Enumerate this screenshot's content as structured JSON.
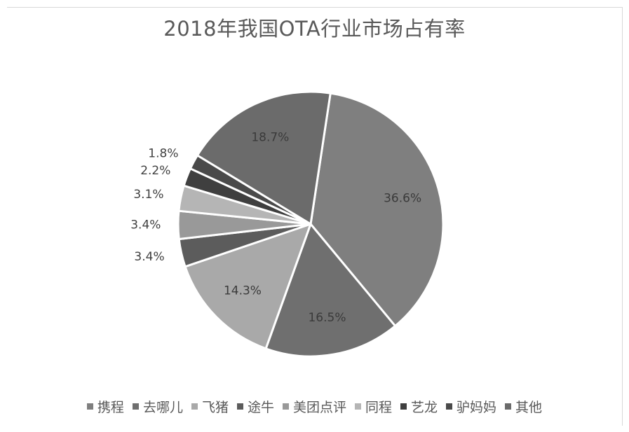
{
  "chart_data": {
    "type": "pie",
    "title": "2018年我国OTA行业市场占有率",
    "slices": [
      {
        "name": "携程",
        "value": 36.6,
        "label": "36.6%",
        "color": "#7f7f7f"
      },
      {
        "name": "去哪儿",
        "value": 16.5,
        "label": "16.5%",
        "color": "#6f6f6f"
      },
      {
        "name": "飞猪",
        "value": 14.3,
        "label": "14.3%",
        "color": "#a9a9a9"
      },
      {
        "name": "途牛",
        "value": 3.4,
        "label": "3.4%",
        "color": "#5c5c5c"
      },
      {
        "name": "美团点评",
        "value": 3.4,
        "label": "3.4%",
        "color": "#999999"
      },
      {
        "name": "同程",
        "value": 3.1,
        "label": "3.1%",
        "color": "#b5b5b5"
      },
      {
        "name": "艺龙",
        "value": 2.2,
        "label": "2.2%",
        "color": "#3f3f3f"
      },
      {
        "name": "驴妈妈",
        "value": 1.8,
        "label": "1.8%",
        "color": "#4a4a4a"
      },
      {
        "name": "其他",
        "value": 18.7,
        "label": "18.7%",
        "color": "#6b6b6b"
      }
    ],
    "legend_position": "bottom"
  }
}
